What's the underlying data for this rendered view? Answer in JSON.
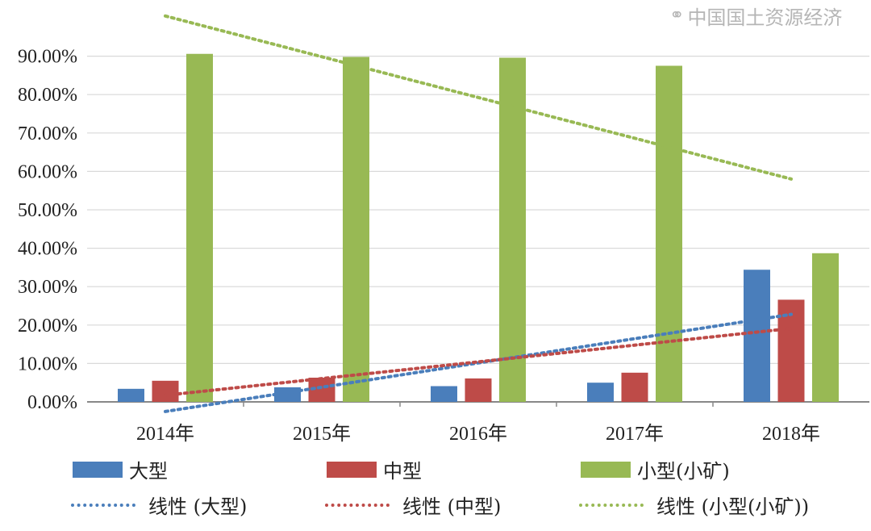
{
  "chart_data": {
    "type": "bar",
    "title": "",
    "xlabel": "",
    "ylabel": "",
    "categories": [
      "2014年",
      "2015年",
      "2016年",
      "2017年",
      "2018年"
    ],
    "series": [
      {
        "name": "大型",
        "color": "#4a7ebb",
        "values": [
          3.4,
          3.8,
          4.1,
          5.0,
          34.4
        ]
      },
      {
        "name": "中型",
        "color": "#be4b48",
        "values": [
          5.5,
          6.3,
          6.1,
          7.6,
          26.6
        ]
      },
      {
        "name": "小型(小矿)",
        "color": "#98b954",
        "values": [
          90.6,
          89.8,
          89.6,
          87.5,
          38.7
        ]
      }
    ],
    "trendlines": [
      {
        "name": "线性 (大型)",
        "of": "大型",
        "type": "linear",
        "color": "#4a7ebb"
      },
      {
        "name": "线性 (中型)",
        "of": "中型",
        "type": "linear",
        "color": "#be4b48"
      },
      {
        "name": "线性 (小型(小矿))",
        "of": "小型(小矿)",
        "type": "linear",
        "color": "#98b954"
      }
    ],
    "yticks": [
      "0.00%",
      "10.00%",
      "20.00%",
      "30.00%",
      "40.00%",
      "50.00%",
      "60.00%",
      "70.00%",
      "80.00%",
      "90.00%"
    ],
    "ylim": [
      0,
      100
    ],
    "grid": true,
    "legend_position": "bottom"
  },
  "legend": {
    "bars": [
      "大型",
      "中型",
      "小型(小矿)"
    ],
    "lines": [
      "线性 (大型)",
      "线性 (中型)",
      "线性 (小型(小矿))"
    ]
  },
  "watermark": "中国国土资源经济"
}
